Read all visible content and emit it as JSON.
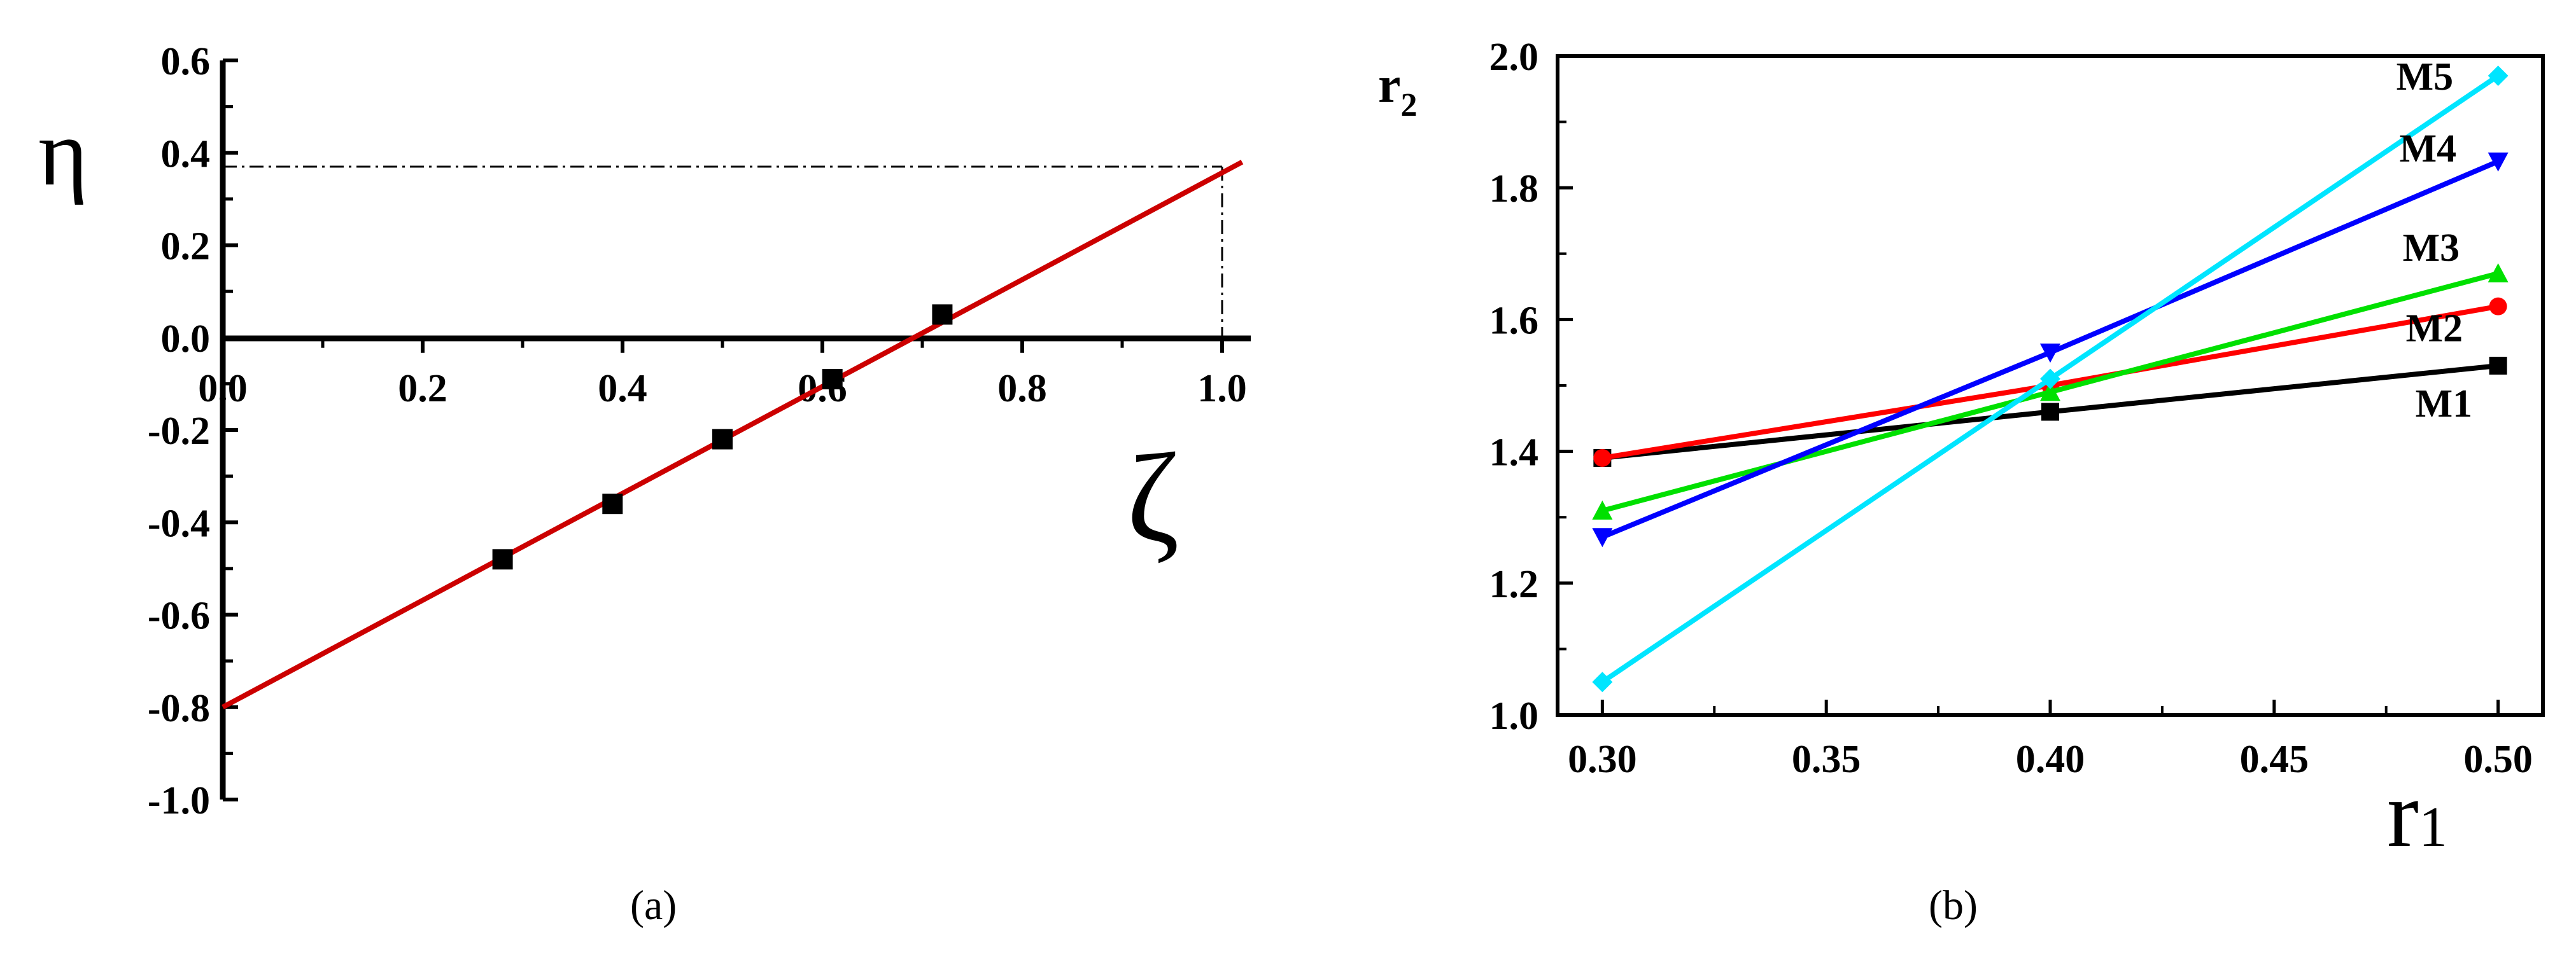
{
  "chart_data": [
    {
      "type": "scatter",
      "panel_label": "(a)",
      "xlabel": "ζ",
      "ylabel": "η",
      "xlim": [
        0.0,
        1.0
      ],
      "ylim": [
        -1.0,
        0.6
      ],
      "x_ticks": [
        "0.0",
        "0.2",
        "0.4",
        "0.6",
        "0.8",
        "1.0"
      ],
      "y_ticks": [
        "0.6",
        "0.4",
        "0.2",
        "0.0",
        "-0.2",
        "-0.4",
        "-0.6",
        "-0.8",
        "-1.0"
      ],
      "x_tick_values": [
        0.0,
        0.2,
        0.4,
        0.6,
        0.8,
        1.0
      ],
      "y_tick_values": [
        0.6,
        0.4,
        0.2,
        0.0,
        -0.2,
        -0.4,
        -0.6,
        -0.8,
        -1.0
      ],
      "points": {
        "x": [
          0.28,
          0.39,
          0.5,
          0.61,
          0.72
        ],
        "y": [
          -0.48,
          -0.36,
          -0.22,
          -0.09,
          0.05
        ]
      },
      "fit_line": {
        "x": [
          0.0,
          1.02
        ],
        "y": [
          -0.8,
          0.38
        ],
        "color": "#cc0000"
      },
      "reference_lines": {
        "x_at_y0": 1.0,
        "y_at": 0.37
      },
      "point_color": "#000000",
      "grid": false
    },
    {
      "type": "line",
      "panel_label": "(b)",
      "xlabel": "r",
      "xlabel_sub": "1",
      "ylabel": "r",
      "ylabel_sub": "2",
      "xlim": [
        0.29,
        0.51
      ],
      "ylim": [
        1.0,
        2.0
      ],
      "x_ticks": [
        "0.30",
        "0.35",
        "0.40",
        "0.45",
        "0.50"
      ],
      "y_ticks": [
        "2.0",
        "1.8",
        "1.6",
        "1.4",
        "1.2",
        "1.0"
      ],
      "x_tick_values": [
        0.3,
        0.35,
        0.4,
        0.45,
        0.5
      ],
      "y_tick_values": [
        2.0,
        1.8,
        1.6,
        1.4,
        1.2,
        1.0
      ],
      "x": [
        0.3,
        0.4,
        0.5
      ],
      "series": [
        {
          "name": "M1",
          "values": [
            1.39,
            1.46,
            1.53
          ],
          "color": "#000000",
          "marker": "square"
        },
        {
          "name": "M2",
          "values": [
            1.39,
            1.5,
            1.62
          ],
          "color": "#ff0000",
          "marker": "circle"
        },
        {
          "name": "M3",
          "values": [
            1.31,
            1.49,
            1.67
          ],
          "color": "#00e000",
          "marker": "triangle-up"
        },
        {
          "name": "M4",
          "values": [
            1.27,
            1.55,
            1.84
          ],
          "color": "#0000ff",
          "marker": "triangle-down"
        },
        {
          "name": "M5",
          "values": [
            1.05,
            1.51,
            1.97
          ],
          "color": "#00e5ff",
          "marker": "diamond"
        }
      ],
      "grid": false
    }
  ]
}
